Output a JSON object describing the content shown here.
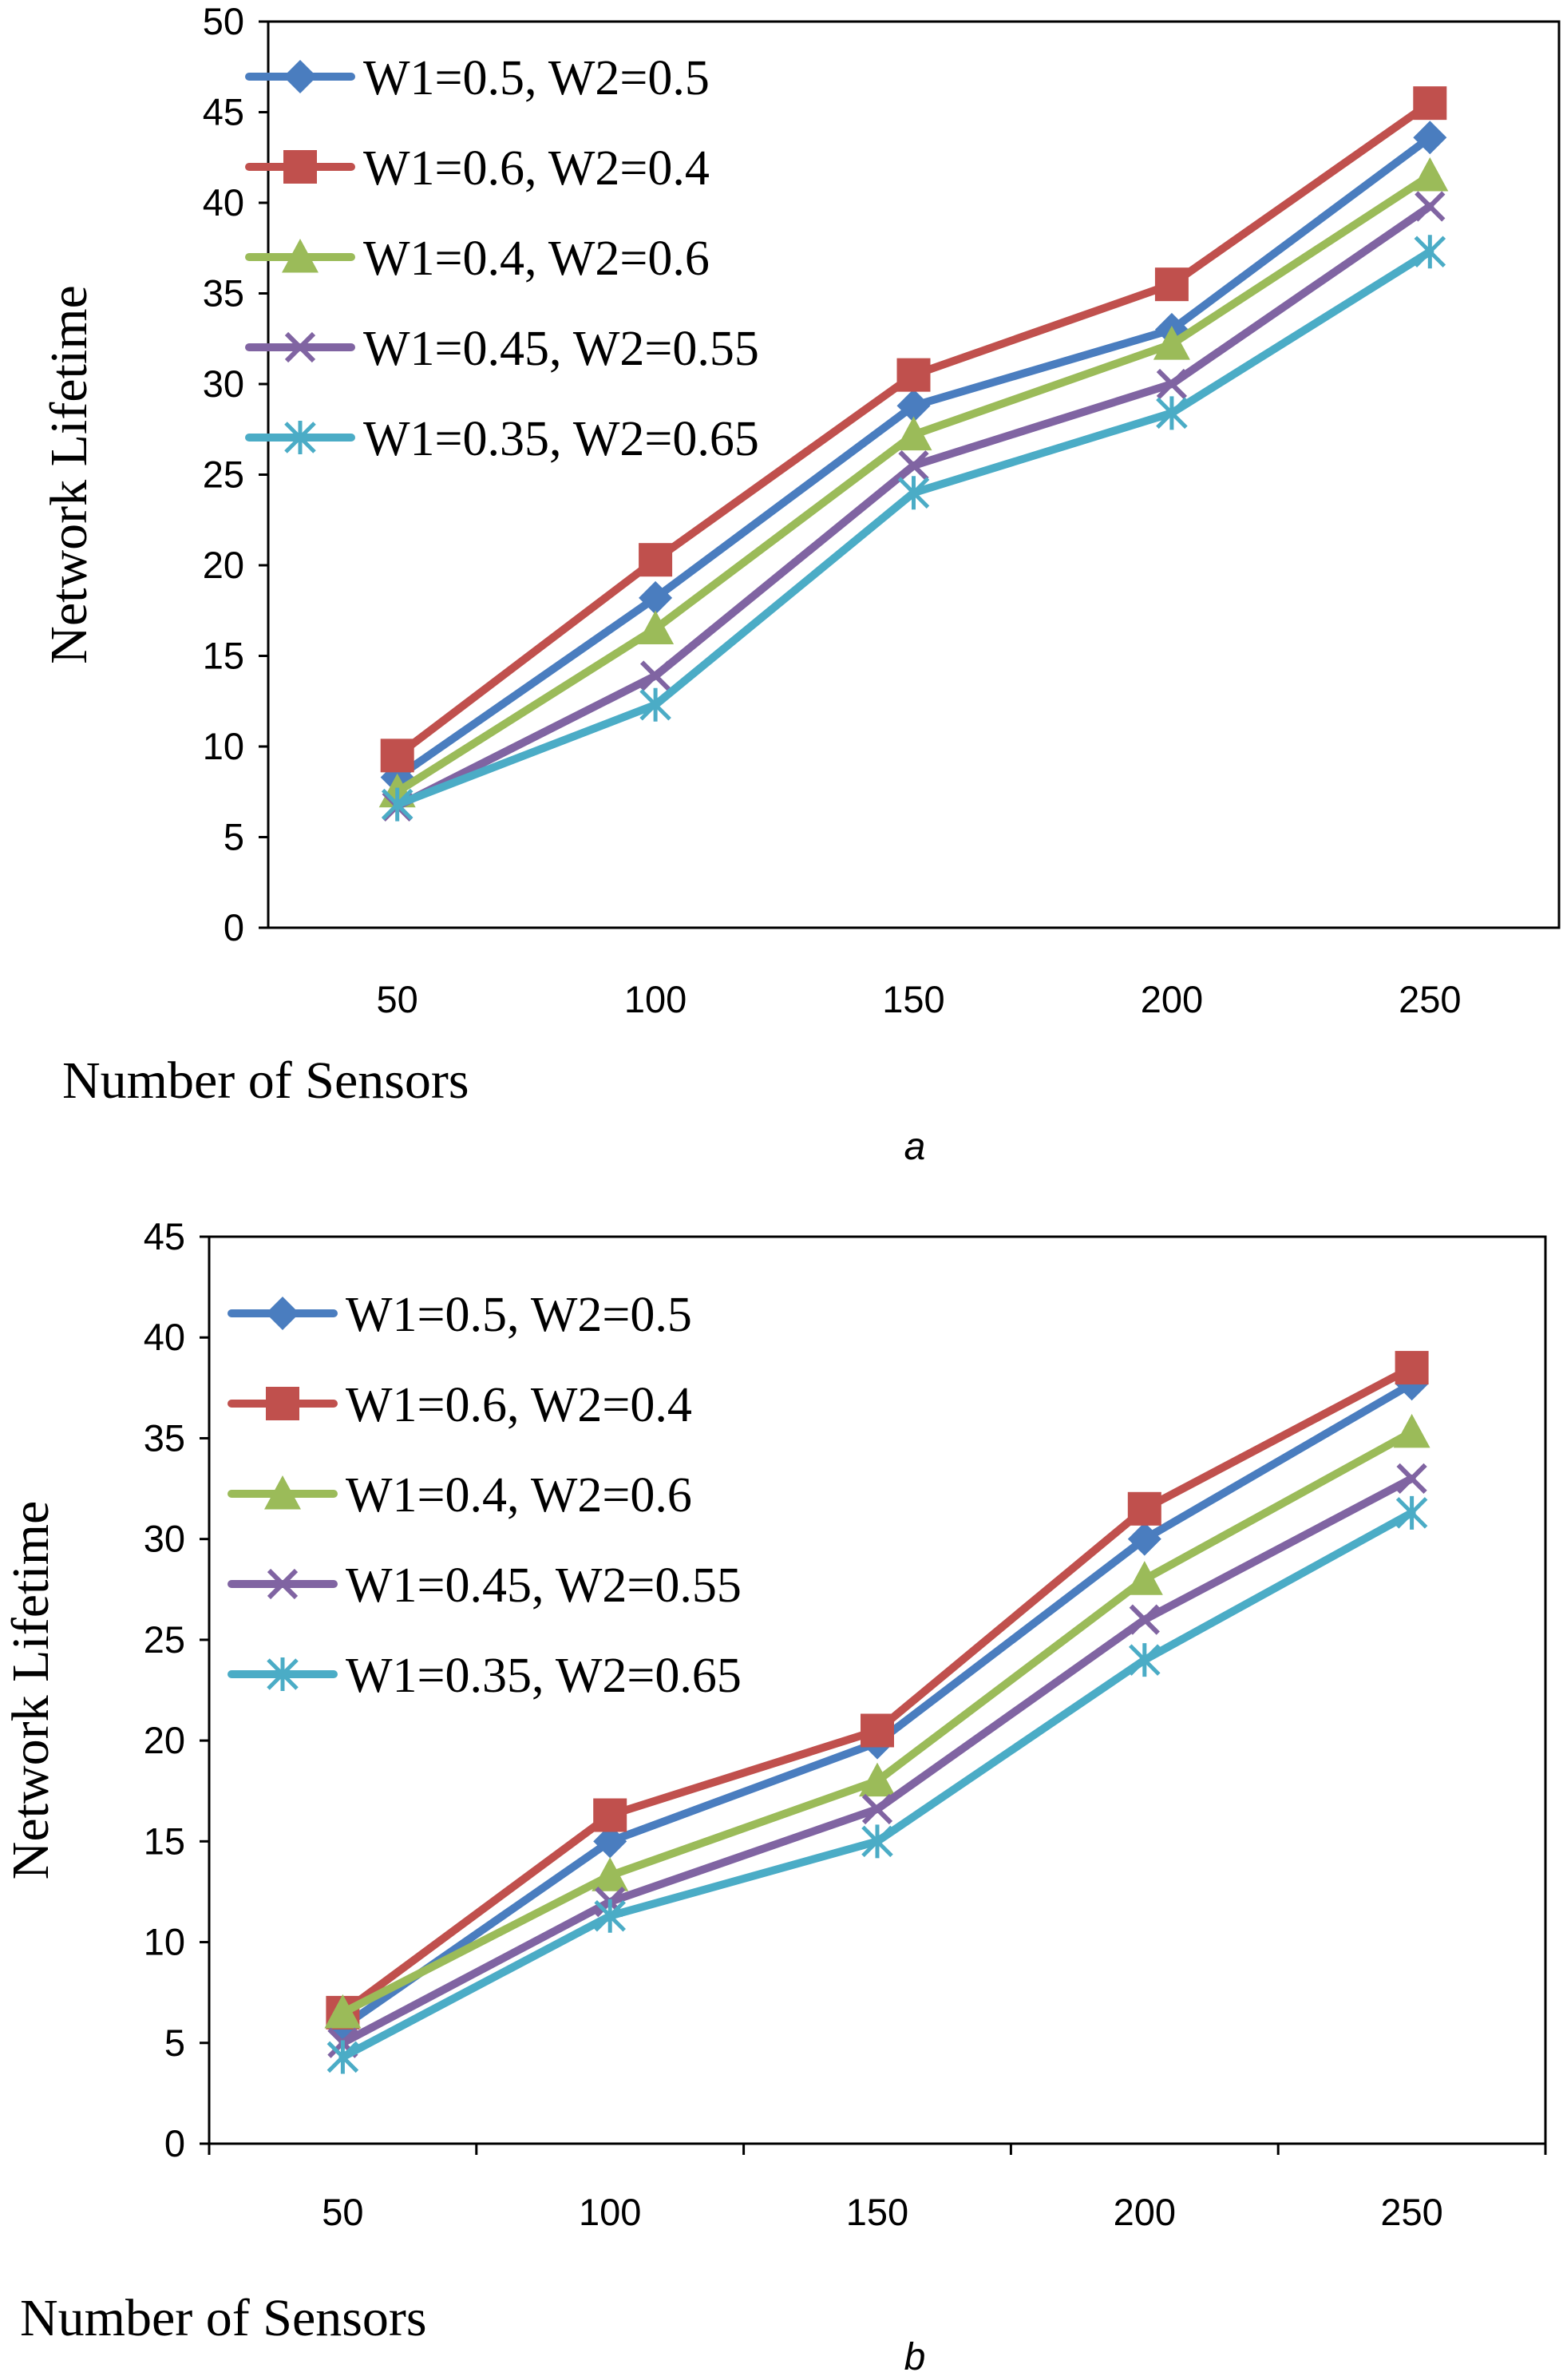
{
  "chart_data": [
    {
      "type": "line",
      "panel_label": "a",
      "xlabel": "Number of Sensors",
      "ylabel": "Network Lifetime",
      "categories": [
        "50",
        "100",
        "150",
        "200",
        "250"
      ],
      "ylim": [
        0,
        50
      ],
      "yticks": [
        0,
        5,
        10,
        15,
        20,
        25,
        30,
        35,
        40,
        45,
        50
      ],
      "grid": false,
      "legend_position": "top-left",
      "series": [
        {
          "name": "W1=0.5, W2=0.5",
          "color": "#4a7dbf",
          "marker": "diamond",
          "values": [
            8.3,
            18.2,
            28.8,
            33.0,
            43.6
          ]
        },
        {
          "name": "W1=0.6, W2=0.4",
          "color": "#c0504d",
          "marker": "square",
          "values": [
            9.5,
            20.3,
            30.5,
            35.5,
            45.5
          ]
        },
        {
          "name": "W1=0.4, W2=0.6",
          "color": "#9bbb59",
          "marker": "triangle",
          "values": [
            7.5,
            16.5,
            27.2,
            32.2,
            41.5
          ]
        },
        {
          "name": "W1=0.45, W2=0.55",
          "color": "#8064a2",
          "marker": "x",
          "values": [
            6.7,
            13.9,
            25.5,
            30.0,
            39.8
          ]
        },
        {
          "name": "W1=0.35, W2=0.65",
          "color": "#4bacc6",
          "marker": "star",
          "values": [
            6.8,
            12.3,
            24.0,
            28.4,
            37.3
          ]
        }
      ]
    },
    {
      "type": "line",
      "panel_label": "b",
      "xlabel": "Number of Sensors",
      "ylabel": "Network Lifetime",
      "categories": [
        "50",
        "100",
        "150",
        "200",
        "250"
      ],
      "ylim": [
        0,
        45
      ],
      "yticks": [
        0,
        5,
        10,
        15,
        20,
        25,
        30,
        35,
        40,
        45
      ],
      "grid": false,
      "legend_position": "top-left",
      "series": [
        {
          "name": "W1=0.5, W2=0.5",
          "color": "#4a7dbf",
          "marker": "diamond",
          "values": [
            5.8,
            15.0,
            19.9,
            30.0,
            37.7
          ]
        },
        {
          "name": "W1=0.6, W2=0.4",
          "color": "#c0504d",
          "marker": "square",
          "values": [
            6.5,
            16.3,
            20.5,
            31.5,
            38.5
          ]
        },
        {
          "name": "W1=0.4, W2=0.6",
          "color": "#9bbb59",
          "marker": "triangle",
          "values": [
            6.5,
            13.3,
            18.0,
            28.0,
            35.3
          ]
        },
        {
          "name": "W1=0.45, W2=0.55",
          "color": "#8064a2",
          "marker": "x",
          "values": [
            5.0,
            12.0,
            16.6,
            26.0,
            33.0
          ]
        },
        {
          "name": "W1=0.35, W2=0.65",
          "color": "#4bacc6",
          "marker": "star",
          "values": [
            4.3,
            11.3,
            15.0,
            24.0,
            31.3
          ]
        }
      ]
    }
  ]
}
